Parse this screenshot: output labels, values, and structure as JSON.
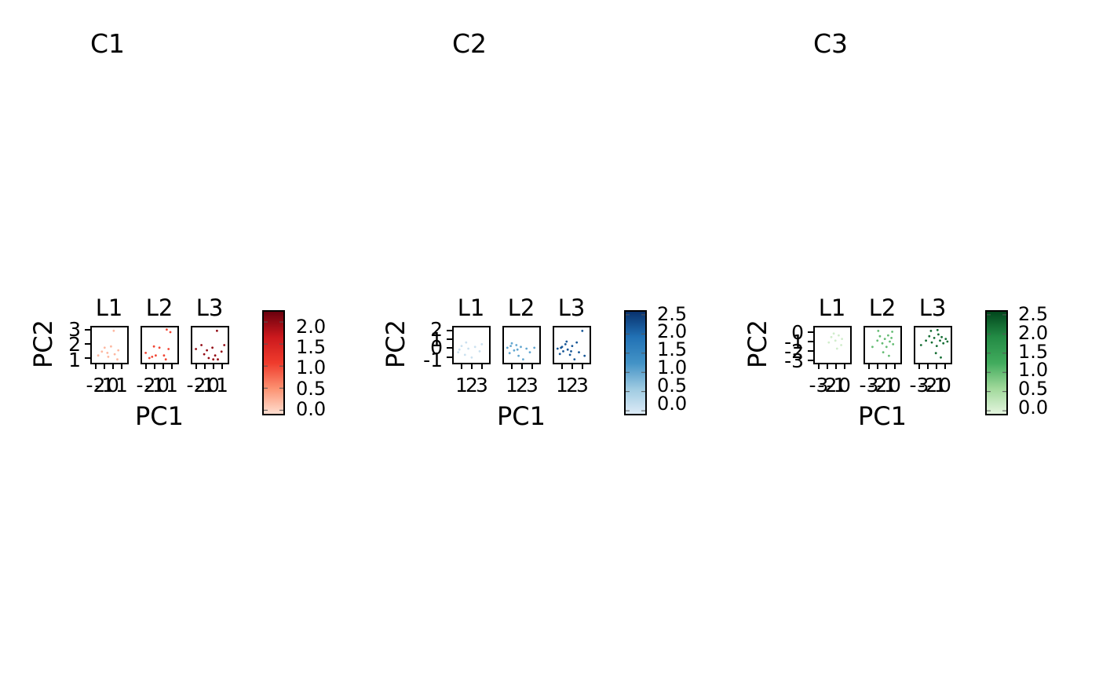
{
  "chart_data": [
    {
      "type": "scatter",
      "title": "C1",
      "xlabel": "PC1",
      "ylabel": "PC2",
      "facets": [
        "L1",
        "L2",
        "L3"
      ],
      "xticks": [
        "-2",
        "-1",
        "0",
        "1"
      ],
      "yticks": [
        "1",
        "2",
        "3"
      ],
      "xlim": [
        -2.3,
        1.4
      ],
      "ylim": [
        0.7,
        3.3
      ],
      "colorbar": {
        "palette": "Reds",
        "colors": [
          "#fee0d2",
          "#fc9272",
          "#ef3b2c",
          "#cb181d",
          "#67000d"
        ],
        "range": [
          -0.1,
          2.25
        ],
        "ticks": [
          "0.0",
          "0.5",
          "1.0",
          "1.5",
          "2.0"
        ]
      },
      "points": [
        [
          {
            "x": -1.6,
            "y": 1.2,
            "v": 0.2
          },
          {
            "x": -0.9,
            "y": 1.8,
            "v": 0.2
          },
          {
            "x": -0.5,
            "y": 1.1,
            "v": 0.2
          },
          {
            "x": -0.2,
            "y": 1.9,
            "v": 0.2
          },
          {
            "x": 0.2,
            "y": 1.3,
            "v": 0.2
          },
          {
            "x": 0.5,
            "y": 0.9,
            "v": 0.2
          },
          {
            "x": -1.2,
            "y": 1.5,
            "v": 0.2
          },
          {
            "x": 0.1,
            "y": 3.1,
            "v": 0.2
          },
          {
            "x": 0.6,
            "y": 1.6,
            "v": 0.2
          },
          {
            "x": -0.6,
            "y": 1.4,
            "v": 0.2
          }
        ],
        [
          {
            "x": -1.9,
            "y": 1.4,
            "v": 1.0
          },
          {
            "x": -1.5,
            "y": 1.0,
            "v": 1.0
          },
          {
            "x": -1.0,
            "y": 1.9,
            "v": 1.0
          },
          {
            "x": -0.4,
            "y": 1.8,
            "v": 1.0
          },
          {
            "x": 0.1,
            "y": 1.2,
            "v": 1.0
          },
          {
            "x": 0.3,
            "y": 0.9,
            "v": 1.0
          },
          {
            "x": 0.6,
            "y": 1.7,
            "v": 1.0
          },
          {
            "x": 0.8,
            "y": 3.0,
            "v": 1.0
          },
          {
            "x": -0.8,
            "y": 1.2,
            "v": 1.0
          },
          {
            "x": 0.4,
            "y": 3.2,
            "v": 1.0
          },
          {
            "x": -1.2,
            "y": 1.1,
            "v": 1.0
          }
        ],
        [
          {
            "x": -1.9,
            "y": 1.7,
            "v": 2.0
          },
          {
            "x": -1.3,
            "y": 2.0,
            "v": 2.0
          },
          {
            "x": -1.0,
            "y": 1.3,
            "v": 2.0
          },
          {
            "x": -0.5,
            "y": 1.0,
            "v": 2.0
          },
          {
            "x": -0.1,
            "y": 1.8,
            "v": 2.0
          },
          {
            "x": 0.2,
            "y": 1.2,
            "v": 2.0
          },
          {
            "x": 0.5,
            "y": 0.9,
            "v": 2.0
          },
          {
            "x": 0.9,
            "y": 1.5,
            "v": 2.0
          },
          {
            "x": 0.4,
            "y": 3.1,
            "v": 2.0
          },
          {
            "x": 1.2,
            "y": 2.0,
            "v": 2.0
          },
          {
            "x": -0.7,
            "y": 1.6,
            "v": 2.0
          },
          {
            "x": 0.0,
            "y": 0.9,
            "v": 2.0
          }
        ]
      ]
    },
    {
      "type": "scatter",
      "title": "C2",
      "xlabel": "PC1",
      "ylabel": "PC2",
      "facets": [
        "L1",
        "L2",
        "L3"
      ],
      "xticks": [
        "1",
        "2",
        "3"
      ],
      "yticks": [
        "-1",
        "0",
        "1",
        "2"
      ],
      "xlim": [
        0.5,
        3.5
      ],
      "ylim": [
        -1.4,
        2.4
      ],
      "colorbar": {
        "palette": "Blues",
        "colors": [
          "#deebf7",
          "#9ecae1",
          "#4292c6",
          "#2171b5",
          "#08306b"
        ],
        "range": [
          -0.1,
          2.6
        ],
        "ticks": [
          "0.0",
          "0.5",
          "1.0",
          "1.5",
          "2.0",
          "2.5"
        ]
      },
      "points": [
        [
          {
            "x": 0.9,
            "y": -0.3,
            "v": 0.1
          },
          {
            "x": 1.2,
            "y": 0.4,
            "v": 0.1
          },
          {
            "x": 1.5,
            "y": -0.6,
            "v": 0.1
          },
          {
            "x": 1.8,
            "y": 0.1,
            "v": 0.1
          },
          {
            "x": 2.1,
            "y": -0.9,
            "v": 0.1
          },
          {
            "x": 2.4,
            "y": 0.3,
            "v": 0.1
          },
          {
            "x": 1.0,
            "y": 0.0,
            "v": 0.1
          },
          {
            "x": 2.8,
            "y": -0.2,
            "v": 0.1
          },
          {
            "x": 3.0,
            "y": 0.6,
            "v": 0.1
          },
          {
            "x": 1.6,
            "y": 0.8,
            "v": 0.1
          }
        ],
        [
          {
            "x": 0.8,
            "y": 0.2,
            "v": 1.0
          },
          {
            "x": 1.0,
            "y": -0.4,
            "v": 1.0
          },
          {
            "x": 1.2,
            "y": 0.7,
            "v": 1.0
          },
          {
            "x": 1.4,
            "y": -0.1,
            "v": 1.0
          },
          {
            "x": 1.6,
            "y": 0.5,
            "v": 1.0
          },
          {
            "x": 1.8,
            "y": -0.7,
            "v": 1.0
          },
          {
            "x": 2.0,
            "y": 0.3,
            "v": 1.0
          },
          {
            "x": 2.2,
            "y": -1.1,
            "v": 1.0
          },
          {
            "x": 2.5,
            "y": 0.1,
            "v": 1.0
          },
          {
            "x": 2.8,
            "y": -0.3,
            "v": 1.0
          },
          {
            "x": 3.2,
            "y": 0.2,
            "v": 1.0
          },
          {
            "x": 1.1,
            "y": 0.4,
            "v": 1.0
          },
          {
            "x": 1.7,
            "y": 0.0,
            "v": 1.0
          }
        ],
        [
          {
            "x": 0.8,
            "y": 0.1,
            "v": 2.2
          },
          {
            "x": 1.0,
            "y": -0.5,
            "v": 2.2
          },
          {
            "x": 1.2,
            "y": 0.3,
            "v": 2.2
          },
          {
            "x": 1.3,
            "y": -0.2,
            "v": 2.2
          },
          {
            "x": 1.5,
            "y": 0.6,
            "v": 2.2
          },
          {
            "x": 1.7,
            "y": 0.0,
            "v": 2.2
          },
          {
            "x": 1.9,
            "y": -0.6,
            "v": 2.2
          },
          {
            "x": 2.1,
            "y": 0.4,
            "v": 2.2
          },
          {
            "x": 2.3,
            "y": -1.1,
            "v": 2.2
          },
          {
            "x": 2.5,
            "y": 0.8,
            "v": 2.2
          },
          {
            "x": 2.7,
            "y": -0.3,
            "v": 2.2
          },
          {
            "x": 3.0,
            "y": 2.1,
            "v": 2.2
          },
          {
            "x": 1.1,
            "y": 0.2,
            "v": 2.2
          },
          {
            "x": 1.6,
            "y": 0.9,
            "v": 2.2
          },
          {
            "x": 2.0,
            "y": -0.2,
            "v": 2.2
          },
          {
            "x": 3.2,
            "y": -0.7,
            "v": 2.2
          }
        ]
      ]
    },
    {
      "type": "scatter",
      "title": "C3",
      "xlabel": "PC1",
      "ylabel": "PC2",
      "facets": [
        "L1",
        "L2",
        "L3"
      ],
      "xticks": [
        "-3",
        "-2",
        "-1",
        "0"
      ],
      "yticks": [
        "-3",
        "-2",
        "-1",
        "0"
      ],
      "xlim": [
        -3.5,
        0.6
      ],
      "ylim": [
        -3.3,
        0.5
      ],
      "colorbar": {
        "palette": "Greens",
        "colors": [
          "#e5f5e0",
          "#a1d99b",
          "#41ab5d",
          "#238b45",
          "#00441b"
        ],
        "range": [
          -0.1,
          2.6
        ],
        "ticks": [
          "0.0",
          "0.5",
          "1.0",
          "1.5",
          "2.0",
          "2.5"
        ]
      },
      "points": [
        [
          {
            "x": -1.5,
            "y": -0.5,
            "v": 0.1
          },
          {
            "x": -1.0,
            "y": -0.9,
            "v": 0.1
          },
          {
            "x": -0.6,
            "y": -0.3,
            "v": 0.1
          },
          {
            "x": -0.3,
            "y": -1.4,
            "v": 0.1
          },
          {
            "x": -1.8,
            "y": -1.1,
            "v": 0.1
          },
          {
            "x": -0.8,
            "y": -1.8,
            "v": 0.1
          },
          {
            "x": -1.2,
            "y": -0.1,
            "v": 0.1
          },
          {
            "x": -0.2,
            "y": -0.7,
            "v": 0.1
          }
        ],
        [
          {
            "x": -2.6,
            "y": -1.6,
            "v": 1.0
          },
          {
            "x": -2.0,
            "y": -0.9,
            "v": 1.0
          },
          {
            "x": -1.7,
            "y": -0.4,
            "v": 1.0
          },
          {
            "x": -1.4,
            "y": -1.2,
            "v": 1.0
          },
          {
            "x": -1.1,
            "y": -0.7,
            "v": 1.0
          },
          {
            "x": -0.9,
            "y": -1.6,
            "v": 1.0
          },
          {
            "x": -0.7,
            "y": -0.3,
            "v": 1.0
          },
          {
            "x": -0.5,
            "y": -1.0,
            "v": 1.0
          },
          {
            "x": -0.3,
            "y": -0.6,
            "v": 1.0
          },
          {
            "x": -0.1,
            "y": -1.3,
            "v": 1.0
          },
          {
            "x": -1.3,
            "y": -2.2,
            "v": 1.0
          },
          {
            "x": -0.6,
            "y": -2.6,
            "v": 1.0
          },
          {
            "x": -1.9,
            "y": 0.2,
            "v": 1.0
          },
          {
            "x": -0.2,
            "y": 0.1,
            "v": 1.0
          }
        ],
        [
          {
            "x": -2.8,
            "y": -1.4,
            "v": 2.2
          },
          {
            "x": -2.2,
            "y": -0.9,
            "v": 2.2
          },
          {
            "x": -1.8,
            "y": -0.4,
            "v": 2.2
          },
          {
            "x": -1.5,
            "y": -1.1,
            "v": 2.2
          },
          {
            "x": -1.2,
            "y": -0.6,
            "v": 2.2
          },
          {
            "x": -0.9,
            "y": -1.5,
            "v": 2.2
          },
          {
            "x": -0.7,
            "y": -0.2,
            "v": 2.2
          },
          {
            "x": -0.5,
            "y": -0.9,
            "v": 2.2
          },
          {
            "x": -0.3,
            "y": -0.5,
            "v": 2.2
          },
          {
            "x": -0.1,
            "y": -1.2,
            "v": 2.2
          },
          {
            "x": 0.2,
            "y": -0.7,
            "v": 2.2
          },
          {
            "x": 0.4,
            "y": -1.0,
            "v": 2.2
          },
          {
            "x": -1.0,
            "y": -2.3,
            "v": 2.2
          },
          {
            "x": -0.4,
            "y": -2.8,
            "v": 2.2
          },
          {
            "x": -1.6,
            "y": 0.2,
            "v": 2.2
          },
          {
            "x": -0.8,
            "y": 0.3,
            "v": 2.2
          }
        ]
      ]
    }
  ]
}
